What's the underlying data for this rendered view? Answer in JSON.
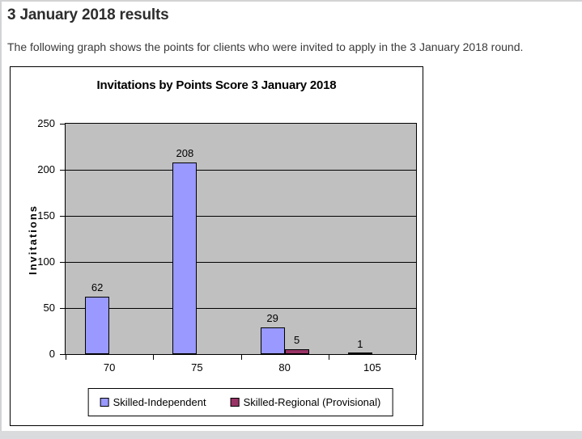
{
  "page": {
    "title": "3 January 2018 results",
    "intro": "The following graph shows the points for clients who were invited to apply in the 3 January 2018 round."
  },
  "chart_data": {
    "type": "bar",
    "title": "Invitations by Points Score 3 January 2018",
    "xlabel": "",
    "ylabel": "Invitations",
    "categories": [
      "70",
      "75",
      "80",
      "105"
    ],
    "series": [
      {
        "name": "Skilled-Independent",
        "color": "#9999FF",
        "values": [
          62,
          208,
          29,
          1
        ]
      },
      {
        "name": "Skilled-Regional (Provisional)",
        "color": "#993366",
        "values": [
          null,
          null,
          5,
          null
        ]
      }
    ],
    "ylim": [
      0,
      250
    ],
    "ytick_step": 50,
    "yticks": [
      "0",
      "50",
      "100",
      "150",
      "200",
      "250"
    ],
    "grid": true,
    "plot_background": "#C0C0C0",
    "gridline_color": "#000000",
    "bar_border_color": "#000000",
    "legend_position": "bottom",
    "data_labels_shown": true
  }
}
